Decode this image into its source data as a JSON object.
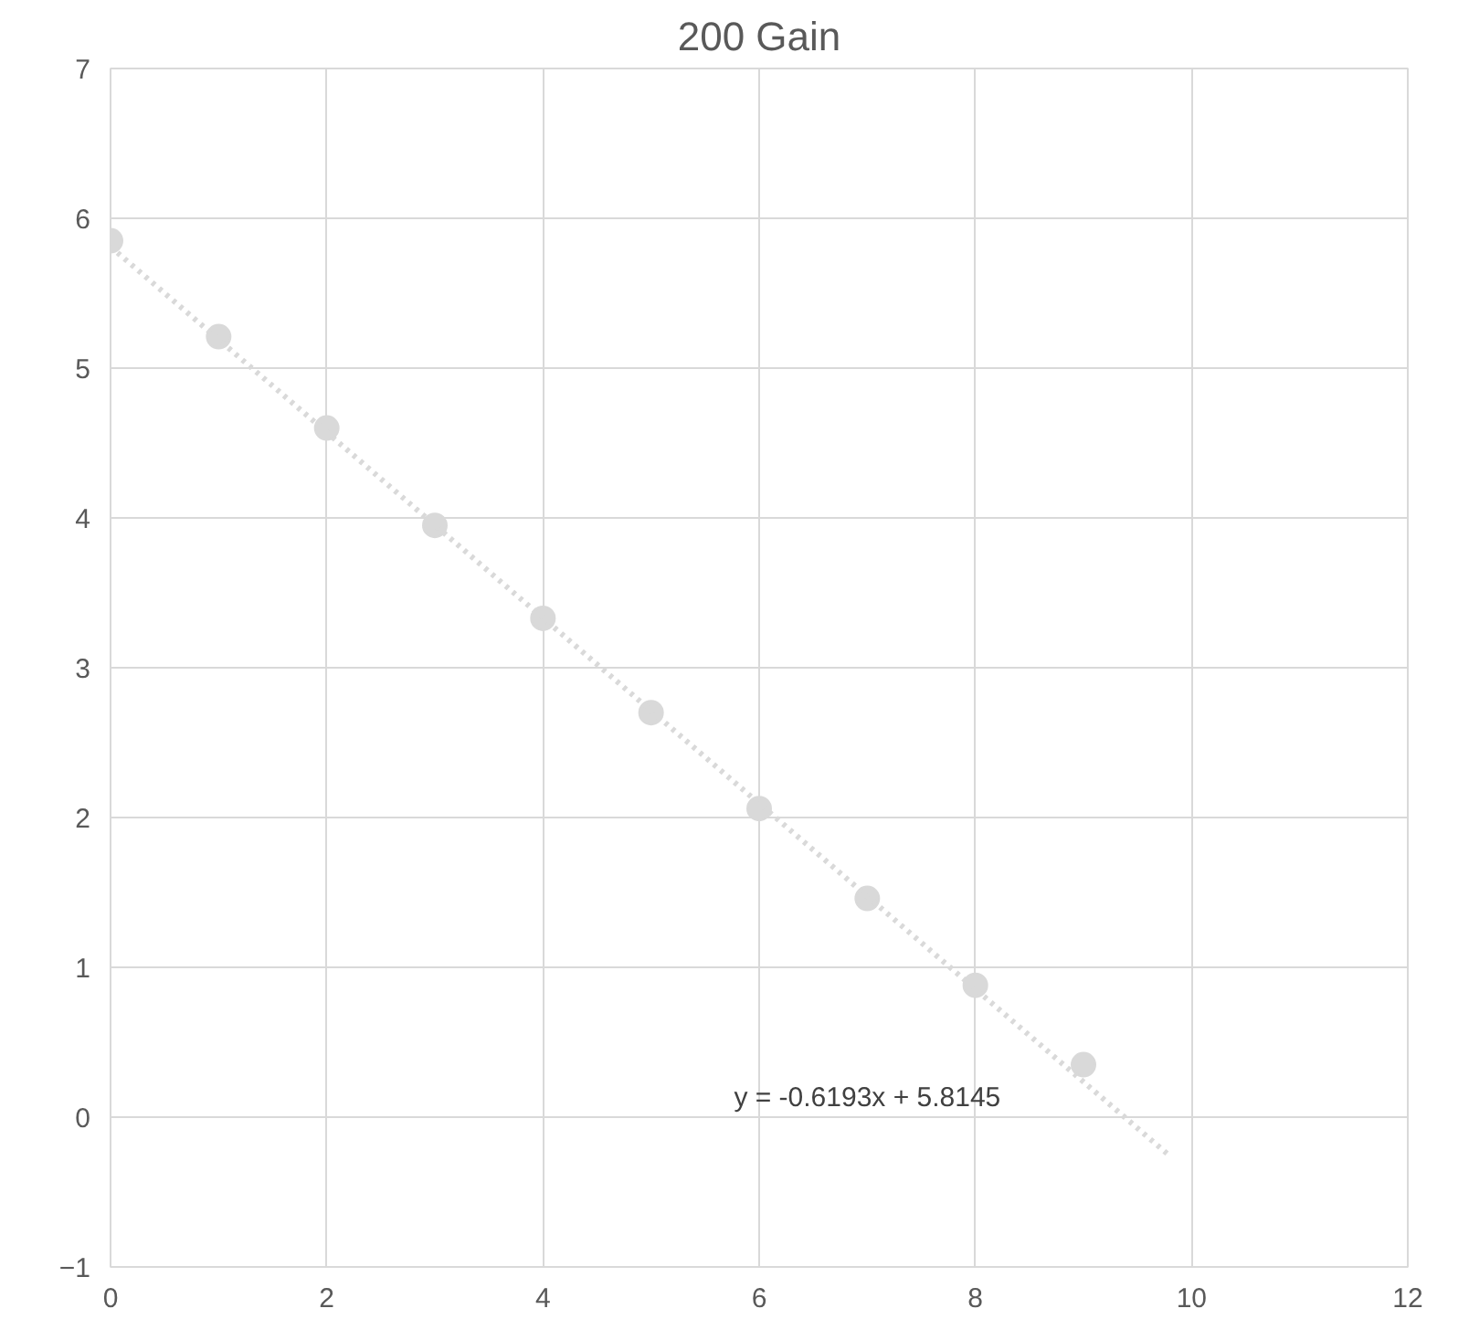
{
  "chart_data": {
    "type": "scatter",
    "title": "200 Gain",
    "x": [
      0,
      1,
      2,
      3,
      4,
      5,
      6,
      7,
      8,
      9
    ],
    "series": [
      {
        "color": "#d9d9d9",
        "marker": "circle",
        "values": [
          5.85,
          5.21,
          4.6,
          3.95,
          3.33,
          2.7,
          2.06,
          1.46,
          0.88,
          0.35
        ]
      },
      {
        "type": "line",
        "color": "#d9d9d9",
        "line_style": "dotted",
        "marker": "none",
        "x": [
          0,
          9.8
        ],
        "values": [
          5.81,
          -0.26
        ]
      }
    ],
    "xlim": [
      0,
      12
    ],
    "xticks": [
      0,
      2,
      4,
      6,
      8,
      10,
      12
    ],
    "ylim": [
      -1,
      7
    ],
    "yticks": [
      -1,
      0,
      1,
      2,
      3,
      4,
      5,
      6,
      7
    ],
    "grid": true,
    "annotations": [
      "y = -0.6193x + 5.8145"
    ]
  }
}
